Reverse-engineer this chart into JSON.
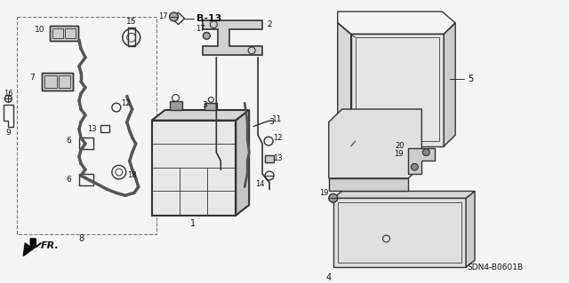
{
  "background_color": "#f5f5f5",
  "diagram_code": "SDN4-B0601B",
  "fig_width": 6.4,
  "fig_height": 3.19,
  "dpi": 100,
  "line_color": "#333333",
  "label_color": "#111111"
}
